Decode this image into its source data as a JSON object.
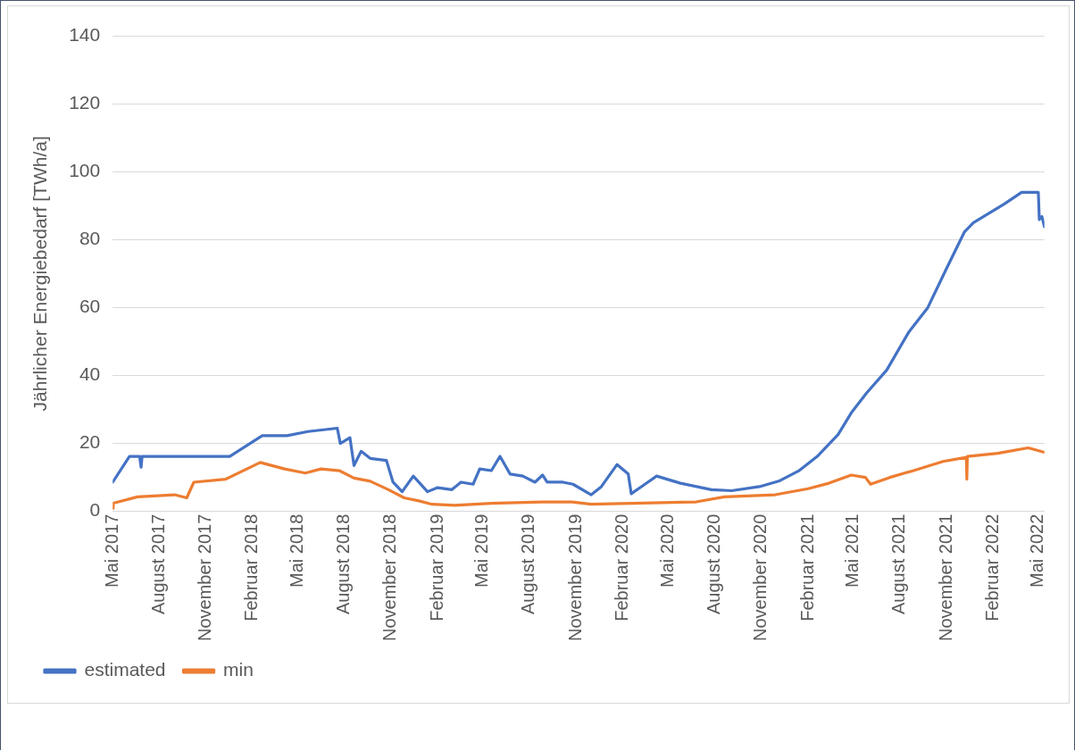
{
  "chart_data": {
    "type": "line",
    "ylabel": "Jährlicher Energiebedarf [TWh/a]",
    "ylim": [
      0,
      140
    ],
    "yticks": [
      0,
      20,
      40,
      60,
      80,
      100,
      120,
      140
    ],
    "xlim": [
      "2017-05-01",
      "2022-05-13"
    ],
    "xticks": [
      {
        "value": "2017-05-01",
        "label": "Mai 2017"
      },
      {
        "value": "2017-08-01",
        "label": "August 2017"
      },
      {
        "value": "2017-11-01",
        "label": "November 2017"
      },
      {
        "value": "2018-02-01",
        "label": "Februar 2018"
      },
      {
        "value": "2018-05-01",
        "label": "Mai 2018"
      },
      {
        "value": "2018-08-01",
        "label": "August 2018"
      },
      {
        "value": "2018-11-01",
        "label": "November 2018"
      },
      {
        "value": "2019-02-01",
        "label": "Februar 2019"
      },
      {
        "value": "2019-05-01",
        "label": "Mai 2019"
      },
      {
        "value": "2019-08-01",
        "label": "August 2019"
      },
      {
        "value": "2019-11-01",
        "label": "November 2019"
      },
      {
        "value": "2020-02-01",
        "label": "Februar 2020"
      },
      {
        "value": "2020-05-01",
        "label": "Mai 2020"
      },
      {
        "value": "2020-08-01",
        "label": "August 2020"
      },
      {
        "value": "2020-11-01",
        "label": "November 2020"
      },
      {
        "value": "2021-02-01",
        "label": "Februar 2021"
      },
      {
        "value": "2021-05-01",
        "label": "Mai 2021"
      },
      {
        "value": "2021-08-01",
        "label": "August 2021"
      },
      {
        "value": "2021-11-01",
        "label": "November 2021"
      },
      {
        "value": "2022-02-01",
        "label": "Februar 2022"
      },
      {
        "value": "2022-05-01",
        "label": "Mai 2022"
      }
    ],
    "grid": "y",
    "legend": "bottom",
    "marker": "none",
    "line_style": "solid",
    "series": [
      {
        "name": "estimated",
        "color": "#4472c4",
        "x": [
          "2017-05-01",
          "2017-06-03",
          "2017-06-23",
          "2017-06-26",
          "2017-06-28",
          "2017-12-18",
          "2018-02-20",
          "2018-04-10",
          "2018-05-21",
          "2018-07-18",
          "2018-07-24",
          "2018-08-12",
          "2018-08-20",
          "2018-09-03",
          "2018-09-21",
          "2018-10-23",
          "2018-11-05",
          "2018-11-23",
          "2018-12-15",
          "2019-01-12",
          "2019-02-01",
          "2019-03-01",
          "2019-03-19",
          "2019-04-12",
          "2019-04-25",
          "2019-05-18",
          "2019-06-04",
          "2019-06-24",
          "2019-07-19",
          "2019-08-12",
          "2019-08-27",
          "2019-09-05",
          "2019-10-06",
          "2019-10-26",
          "2019-12-01",
          "2019-12-21",
          "2020-01-21",
          "2020-02-12",
          "2020-02-18",
          "2020-03-16",
          "2020-04-08",
          "2020-05-25",
          "2020-07-25",
          "2020-09-03",
          "2020-10-28",
          "2020-12-05",
          "2021-01-13",
          "2021-02-19",
          "2021-04-01",
          "2021-04-27",
          "2021-05-27",
          "2021-07-06",
          "2021-08-19",
          "2021-09-25",
          "2021-10-31",
          "2021-12-06",
          "2021-12-24",
          "2022-02-23",
          "2022-03-29",
          "2022-05-01",
          "2022-05-03",
          "2022-05-08",
          "2022-05-13"
        ],
        "values": [
          8.6,
          16.2,
          16.2,
          13,
          16.2,
          16.2,
          22.3,
          22.3,
          23.5,
          24.5,
          20,
          21.7,
          13.5,
          17.7,
          15.6,
          15,
          8.6,
          5.8,
          10.4,
          5.8,
          7,
          6.4,
          8.6,
          8,
          12.5,
          12,
          16.2,
          11,
          10.4,
          8.6,
          10.7,
          8.6,
          8.6,
          8,
          4.9,
          7.3,
          13.8,
          11,
          5.2,
          8,
          10.4,
          8.3,
          6.4,
          6.1,
          7.3,
          8.9,
          11.9,
          16.2,
          22.6,
          29,
          34.8,
          41.6,
          52.9,
          60,
          71.2,
          82.2,
          85,
          90.5,
          93.9,
          93.9,
          85.9,
          86.8,
          83.8
        ]
      },
      {
        "name": "min",
        "color": "#ed7d31",
        "x": [
          "2017-05-01",
          "2017-05-02",
          "2017-06-19",
          "2017-08-31",
          "2017-09-24",
          "2017-10-08",
          "2017-12-10",
          "2018-02-16",
          "2018-04-05",
          "2018-05-16",
          "2018-06-16",
          "2018-07-22",
          "2018-08-20",
          "2018-09-21",
          "2018-10-27",
          "2018-11-27",
          "2018-12-26",
          "2019-01-21",
          "2019-03-07",
          "2019-05-18",
          "2019-08-25",
          "2019-10-24",
          "2019-12-01",
          "2020-02-21",
          "2020-06-25",
          "2020-08-20",
          "2020-11-28",
          "2021-02-01",
          "2021-03-14",
          "2021-04-27",
          "2021-05-25",
          "2021-06-04",
          "2021-07-12",
          "2021-08-25",
          "2021-10-25",
          "2021-12-10",
          "2021-12-11",
          "2021-12-12",
          "2022-02-10",
          "2022-04-11",
          "2022-05-13"
        ],
        "values": [
          0.9,
          2.4,
          4.3,
          4.9,
          4,
          8.6,
          9.5,
          14.4,
          12.5,
          11.3,
          12.5,
          12,
          9.8,
          8.9,
          6.4,
          4,
          3.1,
          2.1,
          1.8,
          2.4,
          2.8,
          2.8,
          2.1,
          2.4,
          2.8,
          4.3,
          4.9,
          6.7,
          8.3,
          10.7,
          10,
          8,
          10,
          11.9,
          14.7,
          15.9,
          9.5,
          16.2,
          17.1,
          18.7,
          17.4
        ]
      }
    ]
  }
}
